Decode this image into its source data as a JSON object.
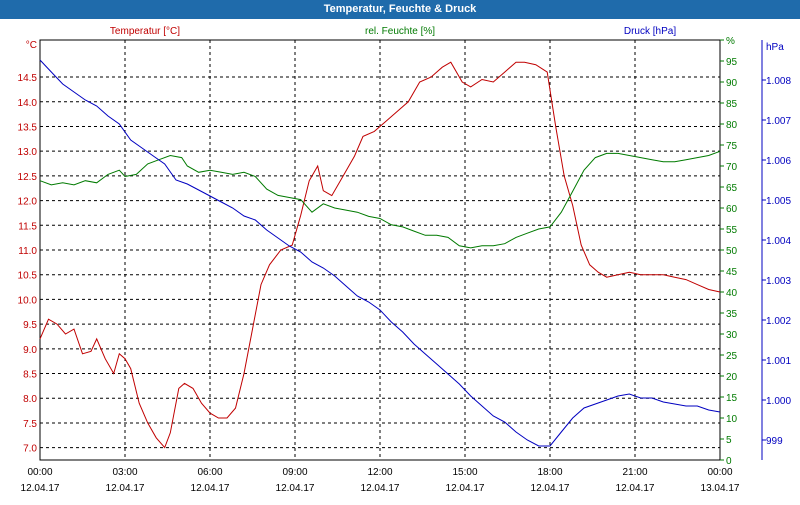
{
  "window": {
    "title": "Temperatur, Feuchte & Druck"
  },
  "colors": {
    "temperature": "#c00000",
    "humidity": "#007a00",
    "pressure": "#0000c0",
    "grid": "#000000",
    "titlebar": "#1f6bab"
  },
  "chart_data": {
    "type": "line",
    "title": "Temperatur, Feuchte & Druck",
    "grid": true,
    "x_ticks": [
      {
        "time": "00:00",
        "date": "12.04.17"
      },
      {
        "time": "03:00",
        "date": "12.04.17"
      },
      {
        "time": "06:00",
        "date": "12.04.17"
      },
      {
        "time": "09:00",
        "date": "12.04.17"
      },
      {
        "time": "12:00",
        "date": "12.04.17"
      },
      {
        "time": "15:00",
        "date": "12.04.17"
      },
      {
        "time": "18:00",
        "date": "12.04.17"
      },
      {
        "time": "21:00",
        "date": "12.04.17"
      },
      {
        "time": "00:00",
        "date": "13.04.17"
      }
    ],
    "x_range_hours": [
      0,
      24
    ],
    "axes": {
      "temperature": {
        "unit": "°C",
        "ylim": [
          6.75,
          15.25
        ],
        "ticks": [
          "7.0",
          "7.5",
          "8.0",
          "8.5",
          "9.0",
          "9.5",
          "10.0",
          "10.5",
          "11.0",
          "11.5",
          "12.0",
          "12.5",
          "13.0",
          "13.5",
          "14.0",
          "14.5"
        ]
      },
      "humidity": {
        "unit": "%",
        "ylim": [
          0,
          100
        ],
        "ticks": [
          "0",
          "5",
          "10",
          "15",
          "20",
          "25",
          "30",
          "35",
          "40",
          "45",
          "50",
          "55",
          "60",
          "65",
          "70",
          "75",
          "80",
          "85",
          "90",
          "95",
          "%"
        ]
      },
      "pressure": {
        "unit": "hPa",
        "ylim": [
          998.5,
          1009.0
        ],
        "ticks": [
          "999",
          "1.000",
          "1.001",
          "1.002",
          "1.003",
          "1.004",
          "1.005",
          "1.006",
          "1.007",
          "1.008",
          "hPa"
        ]
      }
    },
    "series": [
      {
        "name": "Temperatur [°C]",
        "axis": "temperature",
        "points": [
          [
            0,
            9.2
          ],
          [
            0.3,
            9.6
          ],
          [
            0.6,
            9.5
          ],
          [
            0.9,
            9.3
          ],
          [
            1.2,
            9.4
          ],
          [
            1.5,
            8.9
          ],
          [
            1.8,
            8.95
          ],
          [
            2.0,
            9.2
          ],
          [
            2.3,
            8.8
          ],
          [
            2.6,
            8.5
          ],
          [
            2.8,
            8.9
          ],
          [
            3.0,
            8.8
          ],
          [
            3.2,
            8.6
          ],
          [
            3.5,
            7.9
          ],
          [
            3.8,
            7.5
          ],
          [
            4.1,
            7.2
          ],
          [
            4.4,
            7.0
          ],
          [
            4.6,
            7.3
          ],
          [
            4.9,
            8.2
          ],
          [
            5.1,
            8.3
          ],
          [
            5.4,
            8.2
          ],
          [
            5.7,
            7.9
          ],
          [
            6.0,
            7.7
          ],
          [
            6.3,
            7.6
          ],
          [
            6.6,
            7.6
          ],
          [
            6.9,
            7.8
          ],
          [
            7.2,
            8.5
          ],
          [
            7.5,
            9.4
          ],
          [
            7.8,
            10.3
          ],
          [
            8.1,
            10.7
          ],
          [
            8.5,
            11.0
          ],
          [
            8.9,
            11.1
          ],
          [
            9.2,
            11.7
          ],
          [
            9.5,
            12.4
          ],
          [
            9.8,
            12.7
          ],
          [
            10.0,
            12.2
          ],
          [
            10.3,
            12.1
          ],
          [
            10.7,
            12.5
          ],
          [
            11.1,
            12.9
          ],
          [
            11.4,
            13.3
          ],
          [
            11.8,
            13.4
          ],
          [
            12.2,
            13.6
          ],
          [
            12.6,
            13.8
          ],
          [
            13.0,
            14.0
          ],
          [
            13.4,
            14.4
          ],
          [
            13.8,
            14.5
          ],
          [
            14.2,
            14.7
          ],
          [
            14.5,
            14.8
          ],
          [
            14.9,
            14.4
          ],
          [
            15.2,
            14.3
          ],
          [
            15.6,
            14.45
          ],
          [
            16.0,
            14.4
          ],
          [
            16.4,
            14.6
          ],
          [
            16.8,
            14.8
          ],
          [
            17.1,
            14.8
          ],
          [
            17.5,
            14.75
          ],
          [
            17.9,
            14.6
          ],
          [
            18.2,
            13.5
          ],
          [
            18.5,
            12.5
          ],
          [
            18.8,
            11.9
          ],
          [
            19.1,
            11.1
          ],
          [
            19.4,
            10.7
          ],
          [
            19.7,
            10.55
          ],
          [
            20.0,
            10.45
          ],
          [
            20.4,
            10.5
          ],
          [
            20.8,
            10.55
          ],
          [
            21.2,
            10.5
          ],
          [
            21.6,
            10.5
          ],
          [
            22.0,
            10.5
          ],
          [
            22.4,
            10.45
          ],
          [
            22.8,
            10.4
          ],
          [
            23.2,
            10.3
          ],
          [
            23.6,
            10.2
          ],
          [
            24.0,
            10.15
          ]
        ]
      },
      {
        "name": "rel. Feuchte [%]",
        "axis": "humidity",
        "points": [
          [
            0,
            66.5
          ],
          [
            0.4,
            65.5
          ],
          [
            0.8,
            66
          ],
          [
            1.2,
            65.5
          ],
          [
            1.6,
            66.5
          ],
          [
            2.0,
            66
          ],
          [
            2.4,
            68
          ],
          [
            2.8,
            69
          ],
          [
            3.0,
            67.5
          ],
          [
            3.4,
            68
          ],
          [
            3.8,
            70.5
          ],
          [
            4.2,
            71.5
          ],
          [
            4.6,
            72.5
          ],
          [
            5.0,
            72
          ],
          [
            5.2,
            70
          ],
          [
            5.6,
            68.5
          ],
          [
            6.0,
            69
          ],
          [
            6.4,
            68.5
          ],
          [
            6.8,
            68
          ],
          [
            7.2,
            68.5
          ],
          [
            7.6,
            67.5
          ],
          [
            8.0,
            64.5
          ],
          [
            8.4,
            63
          ],
          [
            8.8,
            62.5
          ],
          [
            9.2,
            62
          ],
          [
            9.6,
            59
          ],
          [
            10.0,
            61
          ],
          [
            10.4,
            60
          ],
          [
            10.8,
            59.5
          ],
          [
            11.2,
            59
          ],
          [
            11.6,
            58
          ],
          [
            12.0,
            57.5
          ],
          [
            12.4,
            56
          ],
          [
            12.8,
            55.5
          ],
          [
            13.2,
            54.5
          ],
          [
            13.6,
            53.5
          ],
          [
            14.0,
            53.5
          ],
          [
            14.4,
            53
          ],
          [
            14.8,
            51
          ],
          [
            15.2,
            50.5
          ],
          [
            15.6,
            51
          ],
          [
            16.0,
            51
          ],
          [
            16.4,
            51.5
          ],
          [
            16.8,
            53
          ],
          [
            17.2,
            54
          ],
          [
            17.6,
            55
          ],
          [
            18.0,
            55.5
          ],
          [
            18.4,
            59
          ],
          [
            18.8,
            64
          ],
          [
            19.2,
            69
          ],
          [
            19.6,
            72
          ],
          [
            20.0,
            73
          ],
          [
            20.4,
            73
          ],
          [
            20.8,
            72.5
          ],
          [
            21.2,
            72
          ],
          [
            21.6,
            71.5
          ],
          [
            22.0,
            71
          ],
          [
            22.4,
            71
          ],
          [
            22.8,
            71.5
          ],
          [
            23.2,
            72
          ],
          [
            23.6,
            72.5
          ],
          [
            24.0,
            73.5
          ]
        ]
      },
      {
        "name": "Druck [hPa]",
        "axis": "pressure",
        "points": [
          [
            0,
            1008.5
          ],
          [
            0.4,
            1008.2
          ],
          [
            0.8,
            1007.9
          ],
          [
            1.2,
            1007.7
          ],
          [
            1.6,
            1007.5
          ],
          [
            2.0,
            1007.35
          ],
          [
            2.4,
            1007.1
          ],
          [
            2.8,
            1006.9
          ],
          [
            3.2,
            1006.5
          ],
          [
            3.6,
            1006.3
          ],
          [
            4.0,
            1006.1
          ],
          [
            4.4,
            1005.9
          ],
          [
            4.8,
            1005.5
          ],
          [
            5.2,
            1005.4
          ],
          [
            5.6,
            1005.25
          ],
          [
            6.0,
            1005.1
          ],
          [
            6.4,
            1004.95
          ],
          [
            6.8,
            1004.8
          ],
          [
            7.2,
            1004.6
          ],
          [
            7.6,
            1004.5
          ],
          [
            8.0,
            1004.25
          ],
          [
            8.4,
            1004.05
          ],
          [
            8.8,
            1003.85
          ],
          [
            9.2,
            1003.7
          ],
          [
            9.6,
            1003.45
          ],
          [
            10.0,
            1003.3
          ],
          [
            10.4,
            1003.1
          ],
          [
            10.8,
            1002.85
          ],
          [
            11.2,
            1002.6
          ],
          [
            11.6,
            1002.45
          ],
          [
            12.0,
            1002.25
          ],
          [
            12.4,
            1001.95
          ],
          [
            12.8,
            1001.7
          ],
          [
            13.2,
            1001.4
          ],
          [
            13.6,
            1001.15
          ],
          [
            14.0,
            1000.9
          ],
          [
            14.4,
            1000.65
          ],
          [
            14.8,
            1000.4
          ],
          [
            15.2,
            1000.1
          ],
          [
            15.6,
            999.85
          ],
          [
            16.0,
            999.6
          ],
          [
            16.4,
            999.45
          ],
          [
            16.8,
            999.2
          ],
          [
            17.2,
            999.0
          ],
          [
            17.6,
            998.85
          ],
          [
            18.0,
            998.85
          ],
          [
            18.4,
            999.2
          ],
          [
            18.8,
            999.55
          ],
          [
            19.2,
            999.8
          ],
          [
            19.6,
            999.9
          ],
          [
            20.0,
            1000.0
          ],
          [
            20.4,
            1000.1
          ],
          [
            20.8,
            1000.15
          ],
          [
            21.2,
            1000.05
          ],
          [
            21.6,
            1000.05
          ],
          [
            22.0,
            999.95
          ],
          [
            22.4,
            999.9
          ],
          [
            22.8,
            999.85
          ],
          [
            23.2,
            999.85
          ],
          [
            23.6,
            999.75
          ],
          [
            24.0,
            999.7
          ]
        ]
      }
    ],
    "legend": [
      {
        "label": "Temperatur [°C]",
        "axis": "temperature"
      },
      {
        "label": "rel. Feuchte [%]",
        "axis": "humidity"
      },
      {
        "label": "Druck [hPa]",
        "axis": "pressure"
      }
    ]
  }
}
